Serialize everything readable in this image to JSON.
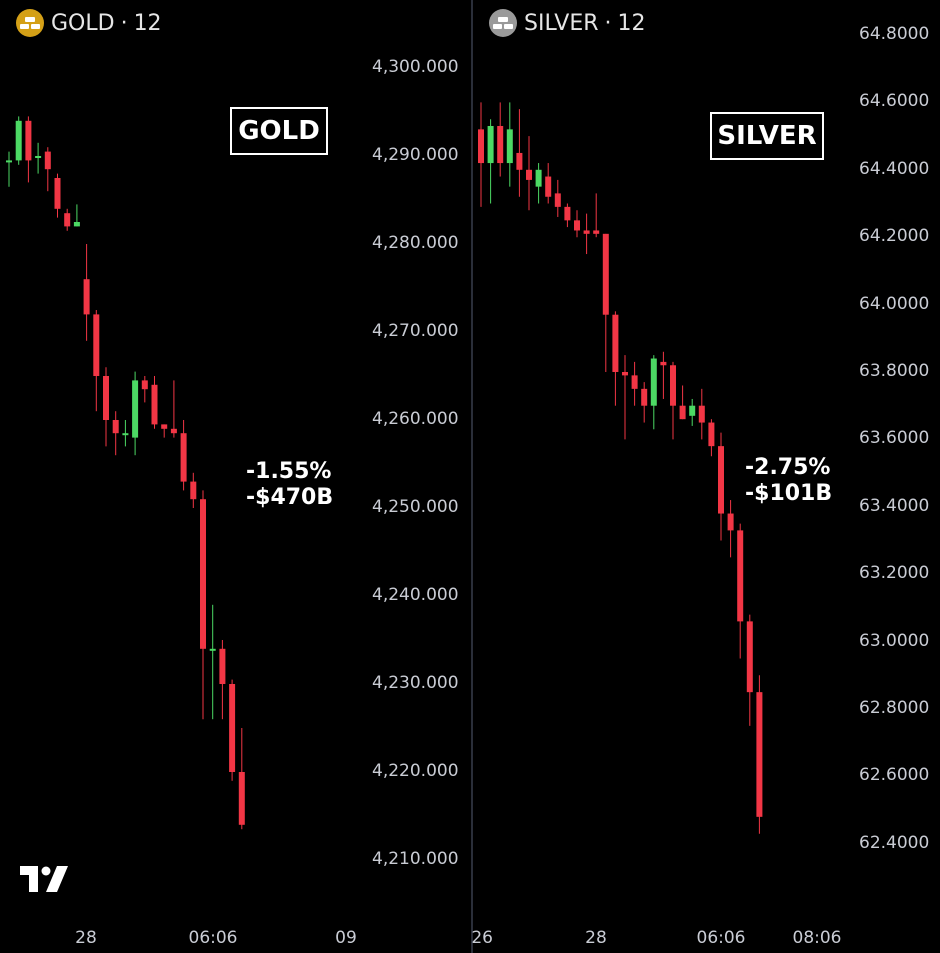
{
  "colors": {
    "up": "#4cd964",
    "down": "#f23645",
    "gold_badge": "#d4a017",
    "silver_badge": "#9a9a9a"
  },
  "logo": "tradingview-logo",
  "charts": [
    {
      "symbol": "GOLD",
      "separator": "·",
      "interval": "12",
      "icon": "gold-bars-icon",
      "box_label": "GOLD",
      "annotation_pct": "-1.55%",
      "annotation_value": "-$470B",
      "y_ticks": [
        "4,300.000",
        "4,290.000",
        "4,280.000",
        "4,270.000",
        "4,260.000",
        "4,250.000",
        "4,240.000",
        "4,230.000",
        "4,220.000",
        "4,210.000"
      ],
      "x_ticks": [
        "28",
        "06:06",
        "09"
      ]
    },
    {
      "symbol": "SILVER",
      "separator": "·",
      "interval": "12",
      "icon": "silver-bars-icon",
      "box_label": "SILVER",
      "annotation_pct": "-2.75%",
      "annotation_value": "-$101B",
      "y_ticks": [
        "64.8000",
        "64.6000",
        "64.4000",
        "64.2000",
        "64.0000",
        "63.8000",
        "63.6000",
        "63.4000",
        "63.2000",
        "63.0000",
        "62.8000",
        "62.6000",
        "62.4000"
      ],
      "x_ticks": [
        "26",
        "28",
        "06:06",
        "08:06"
      ]
    }
  ],
  "chart_data": [
    {
      "type": "candlestick",
      "title": "GOLD · 12",
      "ylim": [
        4208,
        4306
      ],
      "y_ticks": [
        4300,
        4290,
        4280,
        4270,
        4260,
        4250,
        4240,
        4230,
        4220,
        4210
      ],
      "x_ticks": [
        "28",
        "06:06",
        "09"
      ],
      "candles": [
        {
          "o": 4289.5,
          "h": 4290.5,
          "l": 4286.5,
          "c": 4289.5
        },
        {
          "o": 4289.5,
          "h": 4294.5,
          "l": 4289,
          "c": 4294
        },
        {
          "o": 4294,
          "h": 4294.5,
          "l": 4287,
          "c": 4289.5
        },
        {
          "o": 4290,
          "h": 4291.5,
          "l": 4288,
          "c": 4290
        },
        {
          "o": 4290.5,
          "h": 4291,
          "l": 4286,
          "c": 4288.5
        },
        {
          "o": 4287.5,
          "h": 4288,
          "l": 4283,
          "c": 4284
        },
        {
          "o": 4283.5,
          "h": 4284,
          "l": 4281.5,
          "c": 4282
        },
        {
          "o": 4282,
          "h": 4284.5,
          "l": 4282,
          "c": 4282.5
        },
        {
          "o": 4276,
          "h": 4280,
          "l": 4269,
          "c": 4272
        },
        {
          "o": 4272,
          "h": 4272.5,
          "l": 4261,
          "c": 4265
        },
        {
          "o": 4265,
          "h": 4266,
          "l": 4257,
          "c": 4260
        },
        {
          "o": 4260,
          "h": 4261,
          "l": 4256,
          "c": 4258.5
        },
        {
          "o": 4258.5,
          "h": 4260,
          "l": 4257,
          "c": 4258.5
        },
        {
          "o": 4258,
          "h": 4265.5,
          "l": 4256,
          "c": 4264.5
        },
        {
          "o": 4264.5,
          "h": 4265,
          "l": 4262,
          "c": 4263.5
        },
        {
          "o": 4264,
          "h": 4265,
          "l": 4259,
          "c": 4259.5
        },
        {
          "o": 4259.5,
          "h": 4259.5,
          "l": 4258,
          "c": 4259
        },
        {
          "o": 4259,
          "h": 4264.5,
          "l": 4258,
          "c": 4258.5
        },
        {
          "o": 4258.5,
          "h": 4260,
          "l": 4252,
          "c": 4253
        },
        {
          "o": 4253,
          "h": 4254,
          "l": 4250,
          "c": 4251
        },
        {
          "o": 4251,
          "h": 4252,
          "l": 4226,
          "c": 4234
        },
        {
          "o": 4234,
          "h": 4239,
          "l": 4226,
          "c": 4234
        },
        {
          "o": 4234,
          "h": 4235,
          "l": 4226,
          "c": 4230
        },
        {
          "o": 4230,
          "h": 4230.5,
          "l": 4219,
          "c": 4220
        },
        {
          "o": 4220,
          "h": 4225,
          "l": 4213.5,
          "c": 4214
        }
      ]
    },
    {
      "type": "candlestick",
      "title": "SILVER · 12",
      "ylim": [
        62.28,
        64.87
      ],
      "y_ticks": [
        64.8,
        64.6,
        64.4,
        64.2,
        64.0,
        63.8,
        63.6,
        63.4,
        63.2,
        63.0,
        62.8,
        62.6,
        62.4
      ],
      "x_ticks": [
        "26",
        "28",
        "06:06",
        "08:06"
      ],
      "candles": [
        {
          "o": 64.52,
          "h": 64.6,
          "l": 64.29,
          "c": 64.42
        },
        {
          "o": 64.42,
          "h": 64.55,
          "l": 64.3,
          "c": 64.53
        },
        {
          "o": 64.53,
          "h": 64.6,
          "l": 64.38,
          "c": 64.42
        },
        {
          "o": 64.42,
          "h": 64.6,
          "l": 64.35,
          "c": 64.52
        },
        {
          "o": 64.45,
          "h": 64.58,
          "l": 64.32,
          "c": 64.4
        },
        {
          "o": 64.4,
          "h": 64.5,
          "l": 64.28,
          "c": 64.37
        },
        {
          "o": 64.35,
          "h": 64.42,
          "l": 64.3,
          "c": 64.4
        },
        {
          "o": 64.38,
          "h": 64.42,
          "l": 64.3,
          "c": 64.32
        },
        {
          "o": 64.33,
          "h": 64.37,
          "l": 64.26,
          "c": 64.29
        },
        {
          "o": 64.29,
          "h": 64.3,
          "l": 64.23,
          "c": 64.25
        },
        {
          "o": 64.25,
          "h": 64.28,
          "l": 64.2,
          "c": 64.22
        },
        {
          "o": 64.22,
          "h": 64.27,
          "l": 64.15,
          "c": 64.21
        },
        {
          "o": 64.22,
          "h": 64.33,
          "l": 64.2,
          "c": 64.21
        },
        {
          "o": 64.21,
          "h": 64.21,
          "l": 63.8,
          "c": 63.97
        },
        {
          "o": 63.97,
          "h": 63.98,
          "l": 63.7,
          "c": 63.8
        },
        {
          "o": 63.8,
          "h": 63.85,
          "l": 63.6,
          "c": 63.79
        },
        {
          "o": 63.79,
          "h": 63.83,
          "l": 63.7,
          "c": 63.75
        },
        {
          "o": 63.75,
          "h": 63.77,
          "l": 63.65,
          "c": 63.7
        },
        {
          "o": 63.7,
          "h": 63.85,
          "l": 63.63,
          "c": 63.84
        },
        {
          "o": 63.83,
          "h": 63.86,
          "l": 63.72,
          "c": 63.82
        },
        {
          "o": 63.82,
          "h": 63.83,
          "l": 63.6,
          "c": 63.7
        },
        {
          "o": 63.7,
          "h": 63.76,
          "l": 63.66,
          "c": 63.66
        },
        {
          "o": 63.67,
          "h": 63.72,
          "l": 63.64,
          "c": 63.7
        },
        {
          "o": 63.7,
          "h": 63.75,
          "l": 63.6,
          "c": 63.65
        },
        {
          "o": 63.65,
          "h": 63.66,
          "l": 63.55,
          "c": 63.58
        },
        {
          "o": 63.58,
          "h": 63.62,
          "l": 63.3,
          "c": 63.38
        },
        {
          "o": 63.38,
          "h": 63.42,
          "l": 63.25,
          "c": 63.33
        },
        {
          "o": 63.33,
          "h": 63.35,
          "l": 62.95,
          "c": 63.06
        },
        {
          "o": 63.06,
          "h": 63.08,
          "l": 62.75,
          "c": 62.85
        },
        {
          "o": 62.85,
          "h": 62.9,
          "l": 62.43,
          "c": 62.48
        }
      ]
    }
  ]
}
